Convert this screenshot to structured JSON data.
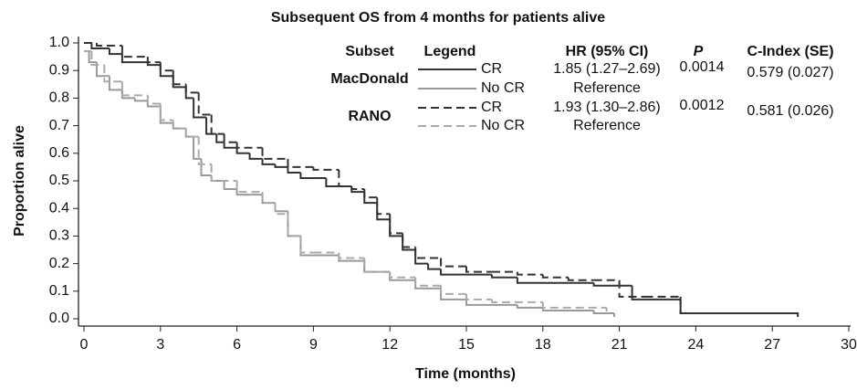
{
  "chart_data": {
    "type": "step",
    "title": "Subsequent OS from 4 months for patients alive",
    "x_label": "Time (months)",
    "y_label": "Proportion alive",
    "xlim": [
      0,
      30
    ],
    "ylim": [
      0,
      1
    ],
    "xticks": [
      0,
      3,
      6,
      9,
      12,
      15,
      18,
      21,
      24,
      27,
      30
    ],
    "yticks": [
      {
        "value": 0,
        "label": "0.0"
      },
      0.1,
      0.2,
      0.3,
      0.4,
      0.5,
      0.6,
      0.7,
      0.8,
      0.9,
      {
        "value": 1,
        "label": "1.0"
      }
    ],
    "legend_headers": [
      "Subset",
      "Legend",
      "HR (95% CI)",
      "P",
      "C-Index (SE)"
    ],
    "subsets": [
      "MacDonald",
      "RANO"
    ],
    "series": [
      {
        "name": "CR",
        "color": "#333333",
        "dashed": false,
        "hr": "1.85 (1.27–2.69)",
        "p": "0.0014",
        "c_index": "0.579 (0.027)",
        "x": [
          0,
          0.3,
          1,
          1.5,
          2.5,
          3,
          3.5,
          4,
          4.3,
          4.8,
          5.2,
          5.5,
          6,
          6.5,
          7,
          7.5,
          8,
          8.5,
          9,
          9.5,
          10.5,
          11,
          11.5,
          12,
          12.5,
          13,
          13.5,
          14,
          15,
          16,
          17,
          19,
          20,
          21.5,
          22,
          23.4,
          28
        ],
        "values": [
          1.0,
          0.98,
          0.96,
          0.93,
          0.92,
          0.88,
          0.84,
          0.8,
          0.73,
          0.67,
          0.64,
          0.62,
          0.6,
          0.58,
          0.56,
          0.55,
          0.53,
          0.51,
          0.51,
          0.48,
          0.46,
          0.42,
          0.36,
          0.3,
          0.25,
          0.2,
          0.18,
          0.16,
          0.16,
          0.15,
          0.13,
          0.13,
          0.12,
          0.07,
          0.07,
          0.02,
          0.01
        ]
      },
      {
        "name": "No CR",
        "color": "#999999",
        "dashed": false,
        "hr": "Reference",
        "x": [
          0,
          0.2,
          0.5,
          1,
          1.5,
          2,
          2.5,
          3,
          3.5,
          4,
          4.3,
          4.6,
          5,
          5.5,
          6,
          7,
          7.5,
          8,
          8.5,
          9,
          10,
          11,
          12,
          13,
          14,
          15,
          16,
          17,
          18,
          20,
          20.8
        ],
        "values": [
          0.97,
          0.93,
          0.88,
          0.83,
          0.8,
          0.79,
          0.77,
          0.71,
          0.69,
          0.66,
          0.58,
          0.52,
          0.5,
          0.47,
          0.45,
          0.42,
          0.39,
          0.3,
          0.23,
          0.23,
          0.21,
          0.17,
          0.14,
          0.11,
          0.07,
          0.05,
          0.05,
          0.04,
          0.03,
          0.02,
          0.01
        ]
      },
      {
        "name": "CR",
        "color": "#333333",
        "dashed": true,
        "hr": "1.93 (1.30–2.86)",
        "p": "0.0012",
        "c_index": "0.581 (0.026)",
        "x": [
          0,
          0.5,
          1.5,
          2.5,
          3,
          3.5,
          4,
          4.5,
          5,
          5.5,
          6,
          7,
          8,
          9,
          10,
          10.5,
          11,
          11.5,
          12,
          12.5,
          13,
          14,
          15,
          16,
          17,
          18,
          19,
          20,
          21,
          22,
          23.4,
          28
        ],
        "values": [
          1.0,
          0.99,
          0.95,
          0.93,
          0.9,
          0.85,
          0.82,
          0.74,
          0.67,
          0.64,
          0.62,
          0.58,
          0.55,
          0.54,
          0.48,
          0.47,
          0.44,
          0.38,
          0.31,
          0.26,
          0.22,
          0.19,
          0.17,
          0.17,
          0.16,
          0.15,
          0.14,
          0.14,
          0.08,
          0.08,
          0.02,
          0.02
        ]
      },
      {
        "name": "No CR",
        "color": "#aaaaaa",
        "dashed": true,
        "hr": "Reference",
        "x": [
          0,
          0.3,
          0.8,
          1.5,
          2.5,
          3,
          3.5,
          4,
          4.5,
          5,
          6,
          7,
          7.5,
          8,
          8.5,
          9,
          10,
          11,
          12,
          13,
          14,
          15,
          16,
          18,
          20.5
        ],
        "values": [
          0.97,
          0.92,
          0.86,
          0.81,
          0.78,
          0.72,
          0.69,
          0.66,
          0.56,
          0.5,
          0.46,
          0.42,
          0.38,
          0.3,
          0.24,
          0.24,
          0.22,
          0.17,
          0.15,
          0.12,
          0.09,
          0.07,
          0.06,
          0.04,
          0.03
        ]
      }
    ]
  }
}
